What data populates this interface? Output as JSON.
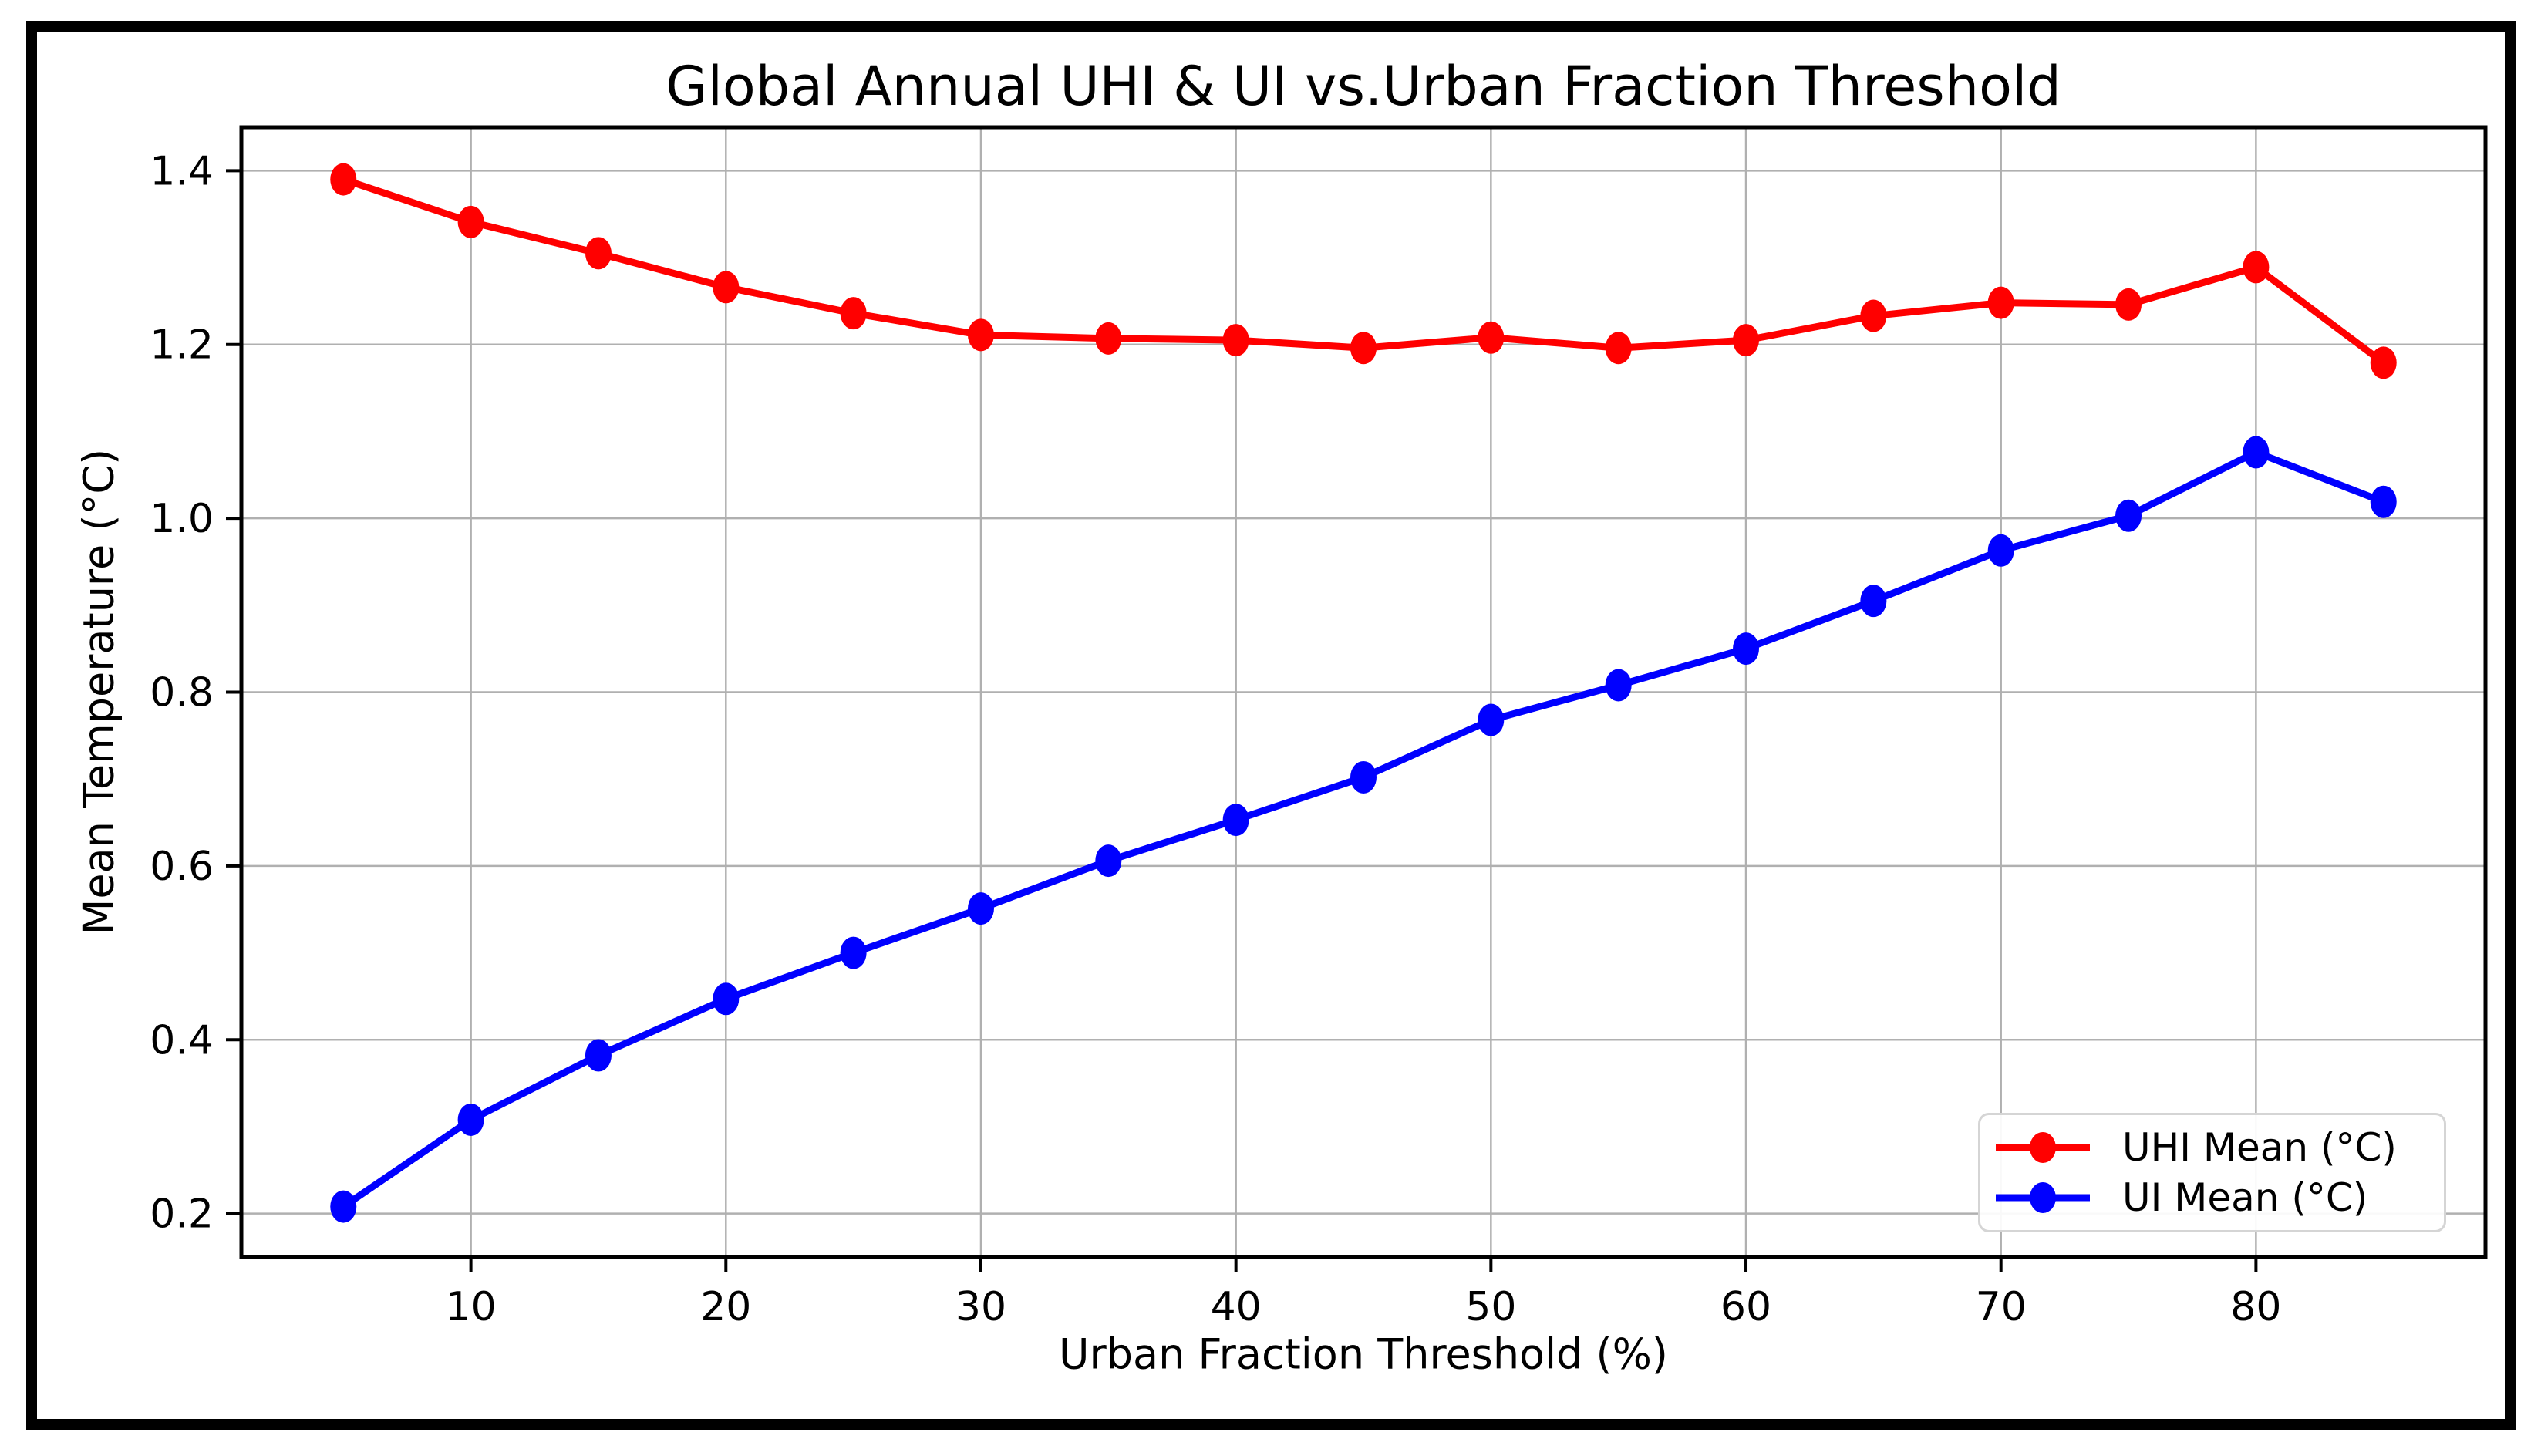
{
  "figure": {
    "background": "#ffffff",
    "frame_color": "#000000"
  },
  "chart_data": {
    "type": "line",
    "title": "Global Annual UHI & UI vs.Urban Fraction Threshold",
    "xlabel": "Urban Fraction Threshold (%)",
    "ylabel": "Mean Temperature (°C)",
    "x": [
      5,
      10,
      15,
      20,
      25,
      30,
      35,
      40,
      45,
      50,
      55,
      60,
      65,
      70,
      75,
      80,
      85
    ],
    "series": [
      {
        "name": "UHI Mean (°C)",
        "color": "#ff0000",
        "values": [
          1.39,
          1.341,
          1.305,
          1.266,
          1.236,
          1.211,
          1.207,
          1.205,
          1.196,
          1.208,
          1.196,
          1.205,
          1.233,
          1.248,
          1.246,
          1.289,
          1.179
        ]
      },
      {
        "name": "UI Mean (°C)",
        "color": "#0000ff",
        "values": [
          0.208,
          0.308,
          0.382,
          0.447,
          0.5,
          0.551,
          0.606,
          0.653,
          0.702,
          0.768,
          0.808,
          0.85,
          0.905,
          0.963,
          1.003,
          1.076,
          1.019
        ]
      }
    ],
    "xlim": [
      1,
      89
    ],
    "ylim": [
      0.15,
      1.45
    ],
    "xticks": [
      10,
      20,
      30,
      40,
      50,
      60,
      70,
      80
    ],
    "yticks": [
      0.2,
      0.4,
      0.6,
      0.8,
      1.0,
      1.2,
      1.4
    ],
    "grid": true,
    "grid_color": "#b0b0b0",
    "axis_color": "#000000",
    "legend_position": "lower right"
  }
}
